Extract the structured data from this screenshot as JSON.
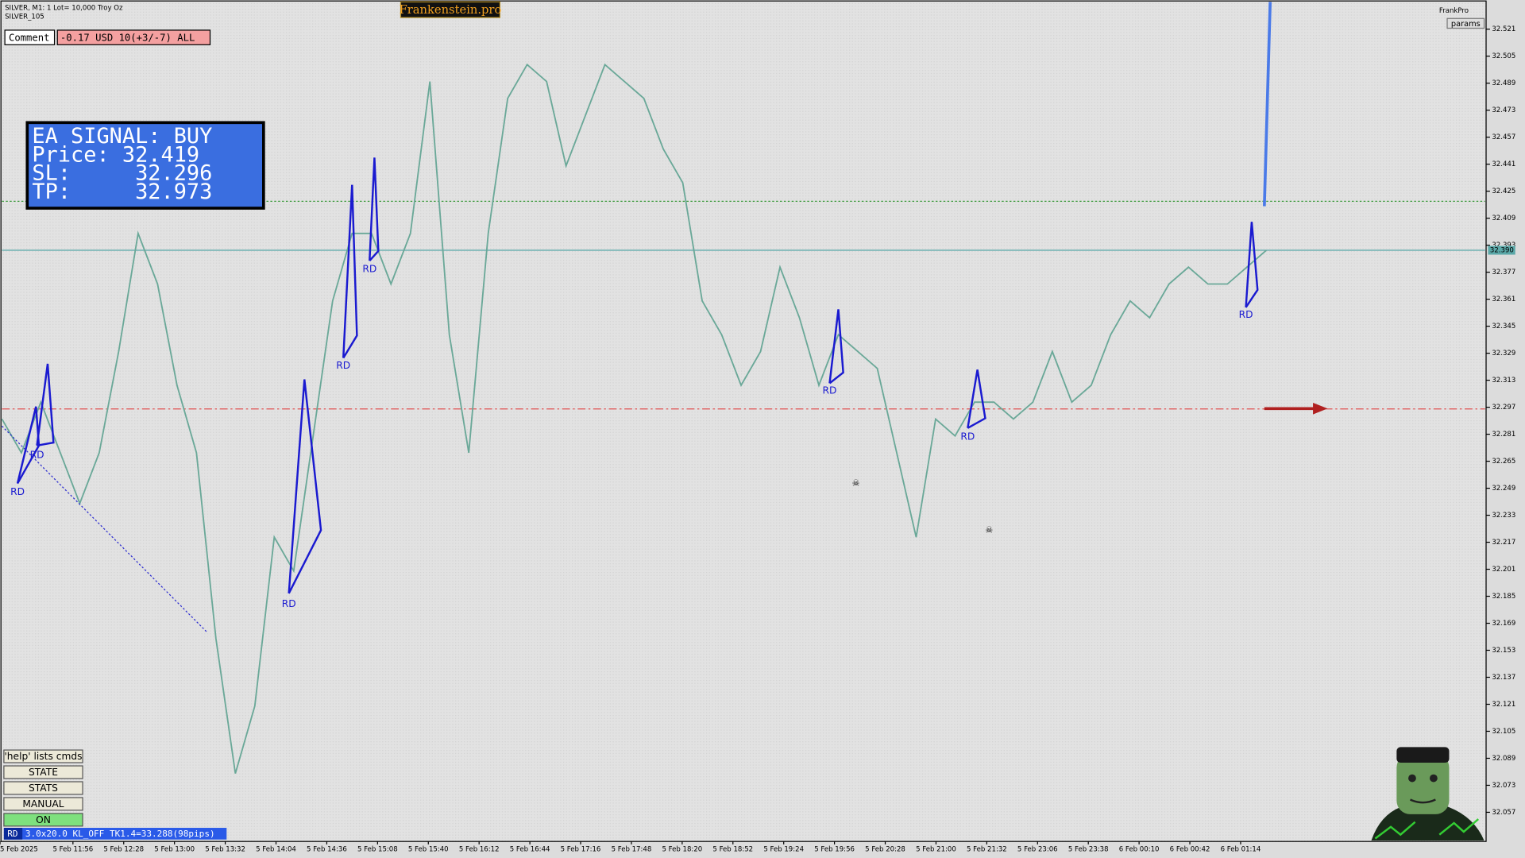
{
  "header": {
    "symbol": "SILVER, M1: 1 Lot= 10,000 Troy Oz",
    "template": "SILVER_105",
    "brand": "Frankenstein.pro",
    "user": "FrankPro",
    "params": "params"
  },
  "comment": {
    "label": "Comment",
    "value": "-0.17 USD 10(+3/-7) ALL"
  },
  "signal": {
    "lines": [
      "EA SIGNAL: BUY",
      "Price: 32.419",
      "SL:     32.296",
      "TP:     32.973"
    ]
  },
  "chart_data": {
    "type": "line",
    "yticks": [
      32.521,
      32.505,
      32.489,
      32.473,
      32.457,
      32.441,
      32.425,
      32.409,
      32.393,
      32.377,
      32.361,
      32.345,
      32.329,
      32.313,
      32.297,
      32.281,
      32.265,
      32.249,
      32.233,
      32.217,
      32.201,
      32.185,
      32.169,
      32.153,
      32.137,
      32.121,
      32.105,
      32.089,
      32.073,
      32.057
    ],
    "xlabels": [
      "5 Feb 2025",
      "5 Feb 11:56",
      "5 Feb 12:28",
      "5 Feb 13:00",
      "5 Feb 13:32",
      "5 Feb 14:04",
      "5 Feb 14:36",
      "5 Feb 15:08",
      "5 Feb 15:40",
      "5 Feb 16:12",
      "5 Feb 16:44",
      "5 Feb 17:16",
      "5 Feb 17:48",
      "5 Feb 18:20",
      "5 Feb 18:52",
      "5 Feb 19:24",
      "5 Feb 19:56",
      "5 Feb 20:28",
      "5 Feb 21:00",
      "5 Feb 21:32",
      "5 Feb 23:06",
      "5 Feb 23:38",
      "6 Feb 00:10",
      "6 Feb 00:42",
      "6 Feb 01:14"
    ],
    "price": [
      32.29,
      32.27,
      32.3,
      32.27,
      32.24,
      32.27,
      32.33,
      32.4,
      32.37,
      32.31,
      32.27,
      32.16,
      32.08,
      32.12,
      32.22,
      32.2,
      32.28,
      32.36,
      32.4,
      32.4,
      32.37,
      32.4,
      32.49,
      32.34,
      32.27,
      32.4,
      32.48,
      32.5,
      32.49,
      32.44,
      32.47,
      32.5,
      32.49,
      32.48,
      32.45,
      32.43,
      32.36,
      32.34,
      32.31,
      32.33,
      32.38,
      32.35,
      32.31,
      32.34,
      32.33,
      32.32,
      32.27,
      32.22,
      32.29,
      32.28,
      32.3,
      32.3,
      32.29,
      32.3,
      32.33,
      32.3,
      32.31,
      32.34,
      32.36,
      32.35,
      32.37,
      32.38,
      32.37,
      32.37,
      32.38,
      32.39
    ],
    "levels": [
      32.419,
      {
        "value": 32.39,
        "label": "32.390"
      },
      32.296
    ],
    "annotations": [
      "RD",
      "RD",
      "RD",
      "RD",
      "RD",
      "RD",
      "RD",
      "RD"
    ]
  },
  "buttons": [
    "'help' lists cmds",
    "STATE",
    "STATS",
    "MANUAL",
    "ON"
  ],
  "status": {
    "mode": "RD",
    "text": "3.0x20.0 KL_OFF TK1.4=33.288(98pips)"
  }
}
